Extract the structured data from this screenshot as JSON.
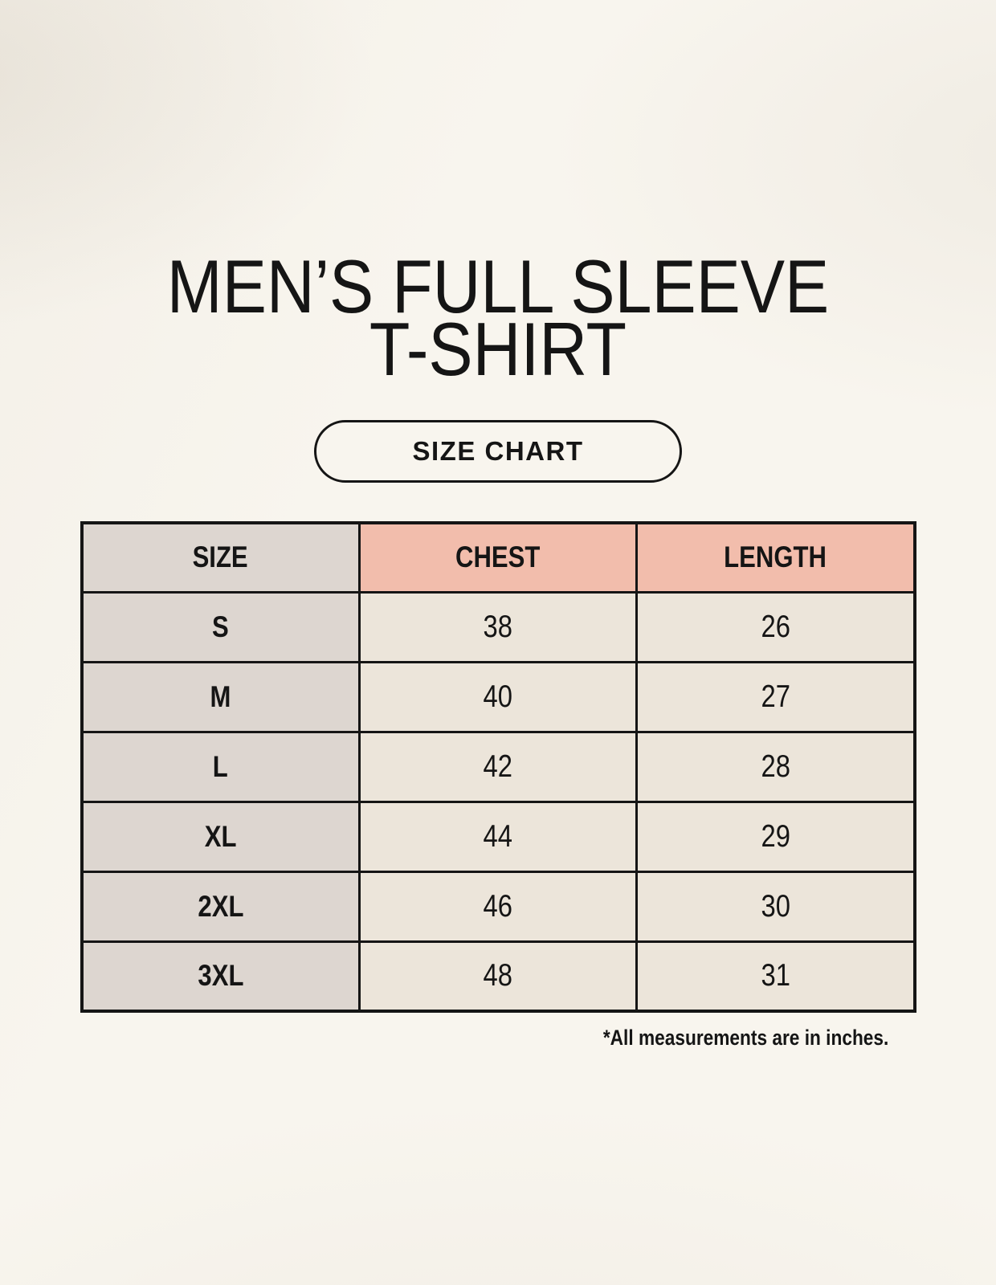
{
  "page": {
    "title_line1": "MEN’S FULL SLEEVE",
    "title_line2": "T-SHIRT",
    "size_chart_button_label": "SIZE CHART"
  },
  "chart_data": {
    "type": "table",
    "title": "MEN’S FULL SLEEVE T-SHIRT",
    "subtitle": "SIZE CHART",
    "columns": [
      "SIZE",
      "CHEST",
      "LENGTH"
    ],
    "rows": [
      [
        "S",
        "38",
        "26"
      ],
      [
        "M",
        "40",
        "27"
      ],
      [
        "L",
        "42",
        "28"
      ],
      [
        "XL",
        "44",
        "29"
      ],
      [
        "2XL",
        "46",
        "30"
      ],
      [
        "3XL",
        "48",
        "31"
      ]
    ],
    "footnote": "*All measurements are in inches."
  },
  "colors": {
    "page_background": "#f8f5ee",
    "size_column_bg": "#ddd6d0",
    "measure_header_bg": "#f2bdac",
    "value_cell_bg": "#ece5da",
    "border": "#151515",
    "text": "#151515"
  }
}
